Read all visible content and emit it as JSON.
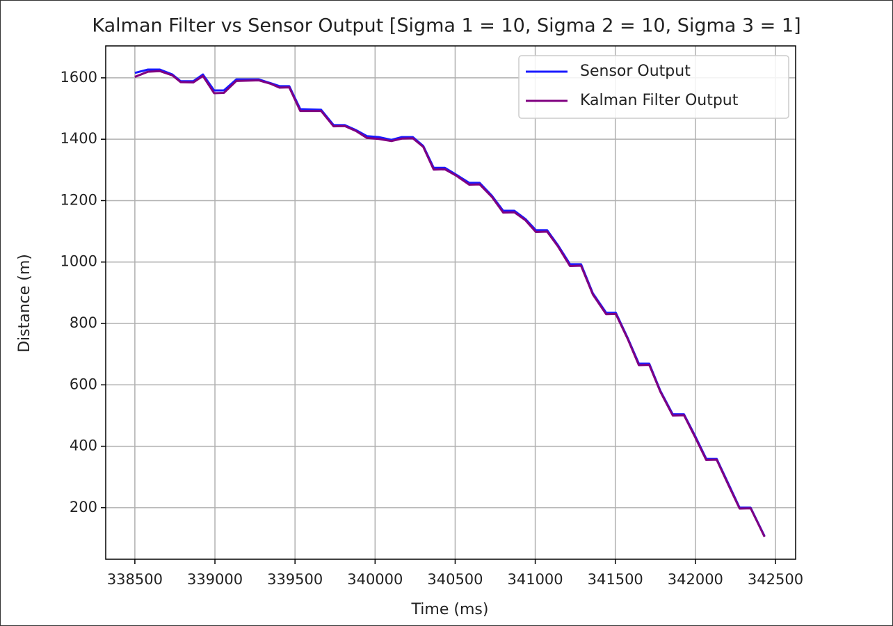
{
  "chart_data": {
    "type": "line",
    "title": "Kalman Filter vs Sensor Output [Sigma 1 = 10, Sigma 2 = 10, Sigma 3 = 1]",
    "x_label": "Time (ms)",
    "y_label": "Distance (m)",
    "x": [
      338500,
      338582,
      338656,
      338734,
      338786,
      338865,
      338925,
      338995,
      339056,
      339134,
      339273,
      339351,
      339403,
      339464,
      339533,
      339663,
      339741,
      339811,
      339880,
      339950,
      340023,
      340102,
      340167,
      340236,
      340301,
      340366,
      340436,
      340505,
      340588,
      340653,
      340731,
      340800,
      340870,
      340939,
      341004,
      341074,
      341143,
      341217,
      341286,
      341360,
      341443,
      341503,
      341577,
      341647,
      341712,
      341781,
      341859,
      341929,
      341998,
      342068,
      342133,
      342207,
      342276,
      342345,
      342432
    ],
    "series": [
      {
        "name": "Sensor Output",
        "color": "#1a1aff",
        "values": [
          1616,
          1627,
          1627,
          1611,
          1589,
          1589,
          1611,
          1559,
          1559,
          1595,
          1595,
          1582,
          1573,
          1573,
          1498,
          1496,
          1446,
          1446,
          1430,
          1410,
          1407,
          1398,
          1407,
          1407,
          1378,
          1307,
          1307,
          1285,
          1258,
          1258,
          1215,
          1167,
          1167,
          1140,
          1104,
          1104,
          1054,
          993,
          993,
          898,
          835,
          835,
          753,
          669,
          669,
          581,
          504,
          504,
          434,
          359,
          359,
          277,
          200,
          200,
          107
        ]
      },
      {
        "name": "Kalman Filter Output",
        "color": "#800080",
        "values": [
          1603,
          1620,
          1622,
          1608,
          1586,
          1585,
          1606,
          1550,
          1551,
          1590,
          1592,
          1580,
          1568,
          1569,
          1492,
          1492,
          1442,
          1443,
          1427,
          1404,
          1401,
          1394,
          1402,
          1403,
          1375,
          1301,
          1302,
          1282,
          1252,
          1253,
          1211,
          1161,
          1162,
          1136,
          1098,
          1099,
          1050,
          987,
          988,
          894,
          830,
          831,
          750,
          664,
          665,
          578,
          500,
          501,
          430,
          355,
          356,
          273,
          197,
          198,
          105
        ]
      }
    ],
    "xlim": [
      338318,
      342626
    ],
    "ylim": [
      32,
      1704
    ],
    "xticks": [
      338500,
      339000,
      339500,
      340000,
      340500,
      341000,
      341500,
      342000,
      342500
    ],
    "yticks": [
      200,
      400,
      600,
      800,
      1000,
      1200,
      1400,
      1600
    ],
    "grid": true,
    "legend": "upper right"
  }
}
